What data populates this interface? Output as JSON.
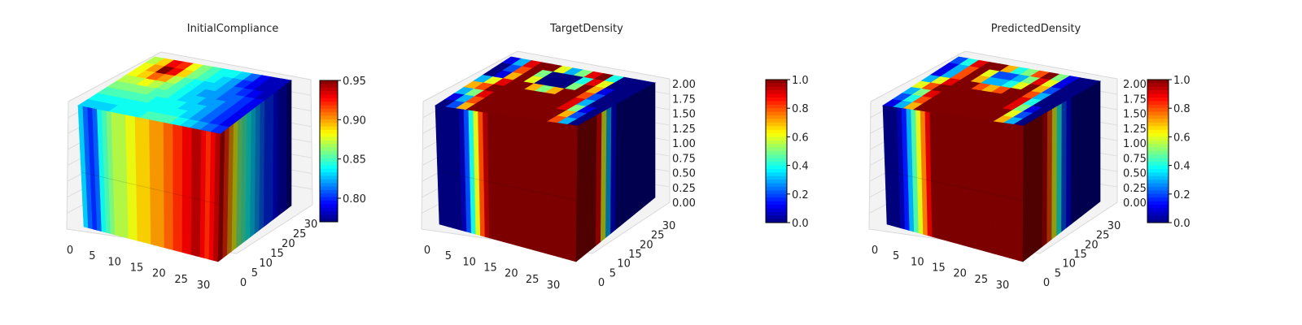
{
  "chart_data": [
    {
      "type": "heatmap",
      "title": "InitialCompliance",
      "xticks": [
        "0",
        "5",
        "10",
        "15",
        "20",
        "25",
        "30"
      ],
      "yticks": [
        "0",
        "5",
        "10",
        "15",
        "20",
        "25",
        "30"
      ],
      "zticks": [],
      "colorbar": {
        "range": [
          0.77,
          0.95
        ],
        "ticks": [
          "0.80",
          "0.85",
          "0.90",
          "0.95"
        ]
      },
      "front_profile": [
        0.83,
        0.81,
        0.8,
        0.81,
        0.84,
        0.85,
        0.86,
        0.87,
        0.87,
        0.87,
        0.88,
        0.88,
        0.89,
        0.89,
        0.89,
        0.9,
        0.9,
        0.9,
        0.91,
        0.91,
        0.92,
        0.92,
        0.93,
        0.93,
        0.94,
        0.94,
        0.93,
        0.92,
        0.93,
        0.94
      ],
      "top_field": [
        [
          0.87,
          0.89,
          0.93,
          0.92,
          0.88,
          0.86,
          0.85,
          0.84,
          0.84,
          0.83,
          0.81,
          0.79,
          0.78,
          0.78
        ],
        [
          0.88,
          0.9,
          0.95,
          0.93,
          0.89,
          0.86,
          0.85,
          0.84,
          0.83,
          0.82,
          0.8,
          0.79,
          0.78,
          0.78
        ],
        [
          0.88,
          0.89,
          0.91,
          0.9,
          0.87,
          0.85,
          0.84,
          0.83,
          0.83,
          0.82,
          0.81,
          0.8,
          0.79,
          0.78
        ],
        [
          0.87,
          0.87,
          0.88,
          0.87,
          0.86,
          0.85,
          0.84,
          0.83,
          0.82,
          0.82,
          0.81,
          0.81,
          0.8,
          0.79
        ],
        [
          0.86,
          0.86,
          0.86,
          0.86,
          0.85,
          0.85,
          0.84,
          0.83,
          0.83,
          0.82,
          0.82,
          0.81,
          0.8,
          0.79
        ],
        [
          0.85,
          0.85,
          0.85,
          0.85,
          0.85,
          0.84,
          0.84,
          0.84,
          0.83,
          0.83,
          0.82,
          0.81,
          0.8,
          0.79
        ],
        [
          0.84,
          0.84,
          0.84,
          0.84,
          0.84,
          0.84,
          0.84,
          0.84,
          0.84,
          0.83,
          0.82,
          0.81,
          0.8,
          0.79
        ],
        [
          0.83,
          0.83,
          0.83,
          0.84,
          0.84,
          0.84,
          0.85,
          0.85,
          0.85,
          0.84,
          0.83,
          0.82,
          0.81,
          0.8
        ]
      ],
      "side_profile": [
        0.94,
        0.92,
        0.9,
        0.88,
        0.86,
        0.85,
        0.84,
        0.83,
        0.82,
        0.81,
        0.8,
        0.8,
        0.79,
        0.78,
        0.78,
        0.77
      ]
    },
    {
      "type": "heatmap",
      "title": "TargetDensity",
      "xticks": [
        "0",
        "5",
        "10",
        "15",
        "20",
        "25",
        "30"
      ],
      "yticks": [
        "0",
        "5",
        "10",
        "15",
        "20",
        "25",
        "30"
      ],
      "zticks": [
        "0.00",
        "0.25",
        "0.50",
        "0.75",
        "1.00",
        "1.25",
        "1.50",
        "1.75",
        "2.00"
      ],
      "colorbar": {
        "range": [
          0,
          1
        ],
        "ticks": [
          "0.0",
          "0.2",
          "0.4",
          "0.6",
          "0.8",
          "1.0"
        ]
      },
      "front_profile": [
        0,
        0,
        0,
        0,
        0,
        0.05,
        0.2,
        0.4,
        0.6,
        0.8,
        0.95,
        1,
        1,
        1,
        1,
        1,
        1,
        1,
        1,
        1,
        1,
        1,
        1,
        1,
        1,
        1,
        1,
        1,
        1,
        1
      ],
      "top_field": [
        [
          0.1,
          0.3,
          0.9,
          1,
          1,
          0.6,
          0.3,
          0.5,
          0.9,
          1,
          0.4,
          0,
          0,
          0
        ],
        [
          0,
          0.2,
          0.8,
          1,
          0.5,
          0,
          0,
          0,
          0.4,
          0.9,
          0.6,
          0,
          0,
          0
        ],
        [
          0,
          0.1,
          0.7,
          1,
          0.6,
          0,
          0,
          0,
          0.5,
          1,
          0.7,
          0.1,
          0,
          0
        ],
        [
          0.3,
          0.6,
          0.9,
          1,
          1,
          0.7,
          0.5,
          0.7,
          1,
          1,
          0.8,
          0.2,
          0,
          0
        ],
        [
          0.7,
          0.8,
          1,
          1,
          1,
          1,
          1,
          1,
          1,
          1,
          0.9,
          0.3,
          0,
          0
        ],
        [
          0.3,
          0.5,
          0.9,
          1,
          1,
          1,
          1,
          1,
          1,
          1,
          0.9,
          0.5,
          0.1,
          0
        ],
        [
          0.1,
          0.3,
          0.8,
          1,
          1,
          1,
          1,
          1,
          1,
          1,
          1,
          0.7,
          0.2,
          0
        ],
        [
          0,
          0.2,
          0.7,
          1,
          1,
          1,
          1,
          1,
          1,
          1,
          1,
          0.8,
          0.3,
          0
        ]
      ],
      "side_profile": [
        1,
        1,
        1,
        1,
        0.9,
        0.6,
        0.3,
        0.1,
        0,
        0,
        0,
        0,
        0,
        0,
        0,
        0
      ]
    },
    {
      "type": "heatmap",
      "title": "PredictedDensity",
      "xticks": [
        "0",
        "5",
        "10",
        "15",
        "20",
        "25",
        "30"
      ],
      "yticks": [
        "0",
        "5",
        "10",
        "15",
        "20",
        "25",
        "30"
      ],
      "zticks": [
        "0.00",
        "0.25",
        "0.50",
        "0.75",
        "1.00",
        "1.25",
        "1.50",
        "1.75",
        "2.00"
      ],
      "colorbar": {
        "range": [
          0,
          1
        ],
        "ticks": [
          "0.0",
          "0.2",
          "0.4",
          "0.6",
          "0.8",
          "1.0"
        ]
      },
      "front_profile": [
        0,
        0,
        0,
        0.05,
        0.15,
        0.3,
        0.45,
        0.6,
        0.75,
        0.9,
        1,
        1,
        1,
        1,
        1,
        1,
        1,
        1,
        1,
        1,
        1,
        1,
        1,
        1,
        1,
        1,
        1,
        1,
        1,
        1
      ],
      "top_field": [
        [
          0.2,
          0.4,
          0.9,
          1,
          1,
          0.7,
          0.4,
          0.5,
          0.8,
          1,
          0.5,
          0.1,
          0,
          0
        ],
        [
          0.1,
          0.3,
          0.8,
          1,
          0.6,
          0.2,
          0.2,
          0.3,
          0.5,
          0.9,
          0.6,
          0.1,
          0,
          0
        ],
        [
          0.1,
          0.3,
          0.8,
          1,
          0.7,
          0.3,
          0.3,
          0.4,
          0.6,
          1,
          0.7,
          0.2,
          0,
          0
        ],
        [
          0.3,
          0.6,
          0.9,
          1,
          1,
          0.8,
          0.7,
          0.8,
          1,
          1,
          0.8,
          0.3,
          0,
          0
        ],
        [
          0.6,
          0.8,
          1,
          1,
          1,
          1,
          1,
          1,
          1,
          1,
          0.9,
          0.4,
          0,
          0
        ],
        [
          0.3,
          0.5,
          0.9,
          1,
          1,
          1,
          1,
          1,
          1,
          1,
          0.9,
          0.5,
          0.1,
          0
        ],
        [
          0.2,
          0.4,
          0.8,
          1,
          1,
          1,
          1,
          1,
          1,
          1,
          1,
          0.6,
          0.2,
          0
        ],
        [
          0.1,
          0.3,
          0.7,
          1,
          1,
          1,
          1,
          1,
          1,
          1,
          1,
          0.7,
          0.3,
          0
        ]
      ],
      "side_profile": [
        1,
        1,
        1,
        1,
        0.95,
        0.8,
        0.6,
        0.4,
        0.2,
        0.1,
        0,
        0,
        0,
        0,
        0,
        0
      ]
    }
  ]
}
